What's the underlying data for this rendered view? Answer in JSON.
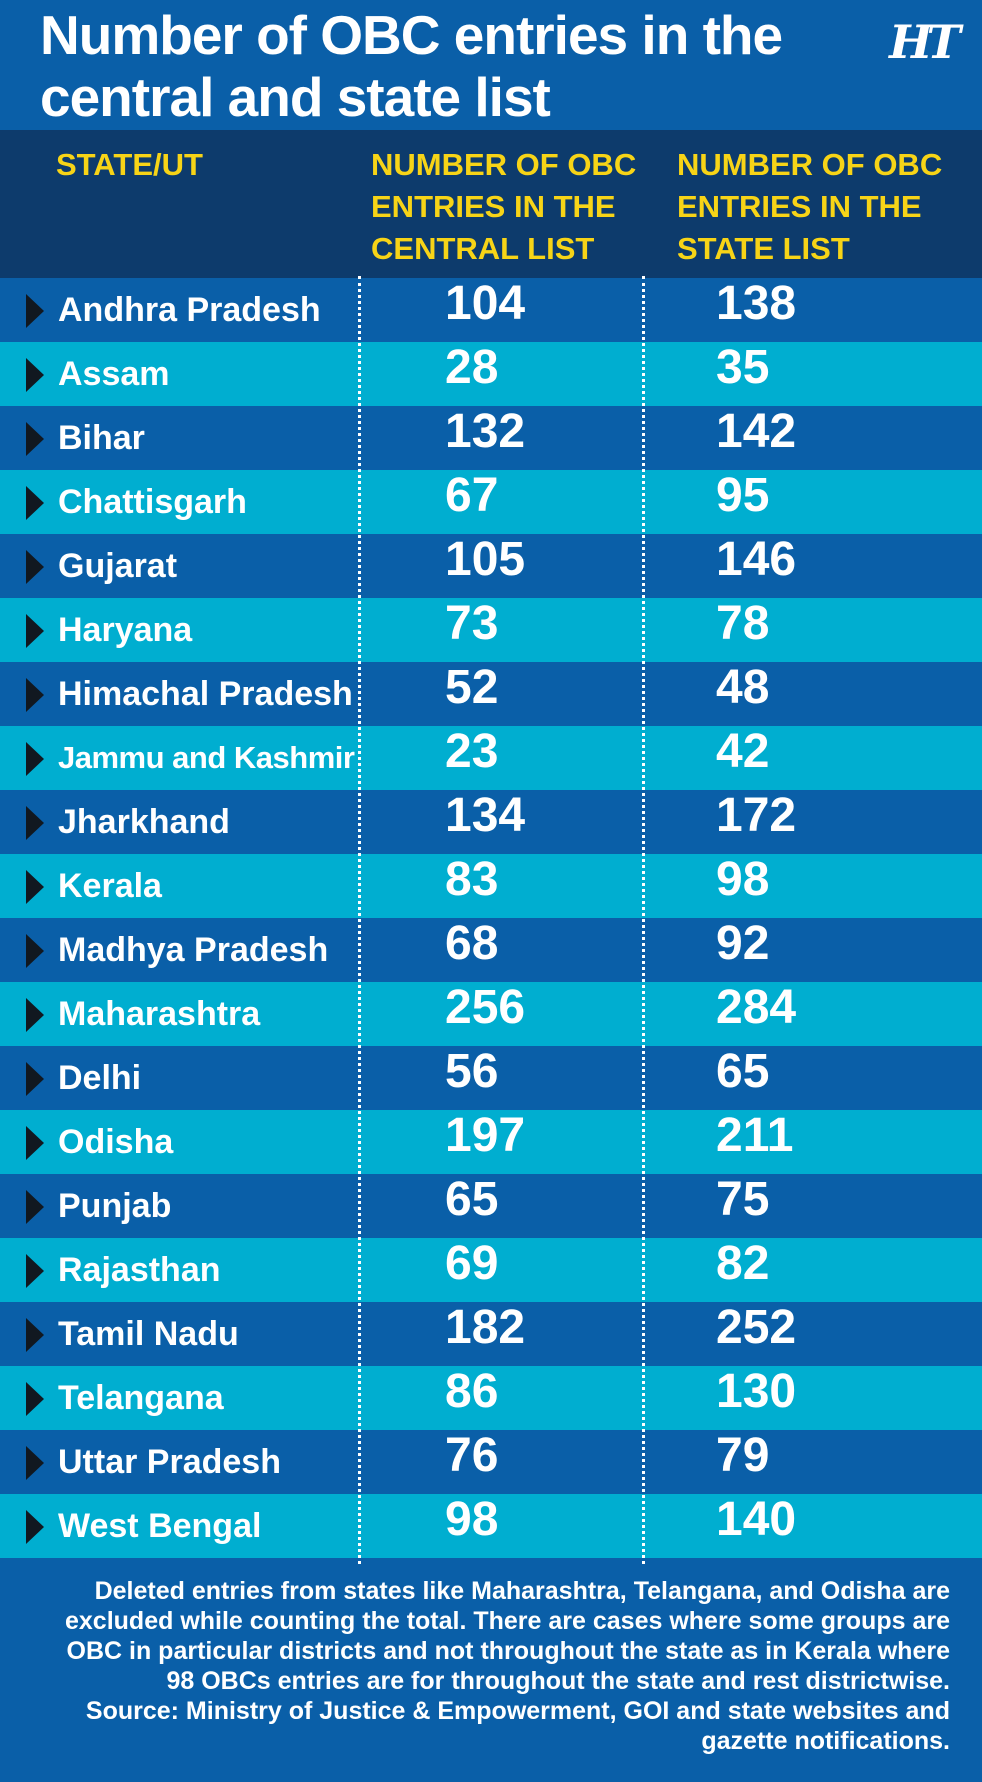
{
  "title": "Number of OBC entries in the central and state list",
  "logo": "HT",
  "colors": {
    "background": "#0a5fa8",
    "header_band": "#0d3b6c",
    "row_dark": "#0a5fa8",
    "row_light": "#00aed0",
    "header_text": "#f7d417",
    "text": "#ffffff",
    "marker": "#111820"
  },
  "chart_data": {
    "type": "table",
    "title": "Number of OBC entries in the central and state list",
    "columns": [
      "STATE/UT",
      "NUMBER OF OBC ENTRIES IN THE CENTRAL LIST",
      "NUMBER OF OBC ENTRIES IN THE STATE LIST"
    ],
    "rows": [
      {
        "state": "Andhra Pradesh",
        "central": 104,
        "state_list": 138
      },
      {
        "state": "Assam",
        "central": 28,
        "state_list": 35
      },
      {
        "state": "Bihar",
        "central": 132,
        "state_list": 142
      },
      {
        "state": "Chattisgarh",
        "central": 67,
        "state_list": 95
      },
      {
        "state": "Gujarat",
        "central": 105,
        "state_list": 146
      },
      {
        "state": "Haryana",
        "central": 73,
        "state_list": 78
      },
      {
        "state": "Himachal Pradesh",
        "central": 52,
        "state_list": 48
      },
      {
        "state": "Jammu and Kashmir",
        "central": 23,
        "state_list": 42
      },
      {
        "state": "Jharkhand",
        "central": 134,
        "state_list": 172
      },
      {
        "state": "Kerala",
        "central": 83,
        "state_list": 98
      },
      {
        "state": "Madhya Pradesh",
        "central": 68,
        "state_list": 92
      },
      {
        "state": "Maharashtra",
        "central": 256,
        "state_list": 284
      },
      {
        "state": "Delhi",
        "central": 56,
        "state_list": 65
      },
      {
        "state": "Odisha",
        "central": 197,
        "state_list": 211
      },
      {
        "state": "Punjab",
        "central": 65,
        "state_list": 75
      },
      {
        "state": "Rajasthan",
        "central": 69,
        "state_list": 82
      },
      {
        "state": "Tamil Nadu",
        "central": 182,
        "state_list": 252
      },
      {
        "state": "Telangana",
        "central": 86,
        "state_list": 130
      },
      {
        "state": "Uttar Pradesh",
        "central": 76,
        "state_list": 79
      },
      {
        "state": "West Bengal",
        "central": 98,
        "state_list": 140
      }
    ]
  },
  "footnote": "Deleted entries from states like Maharashtra, Telangana, and Odisha are excluded while counting the total. There are cases where some groups are OBC in particular districts and not throughout the state as in Kerala where 98 OBCs entries are for throughout the state and rest districtwise.",
  "source": "Source: Ministry of Justice & Empowerment, GOI and state websites and gazette notifications."
}
